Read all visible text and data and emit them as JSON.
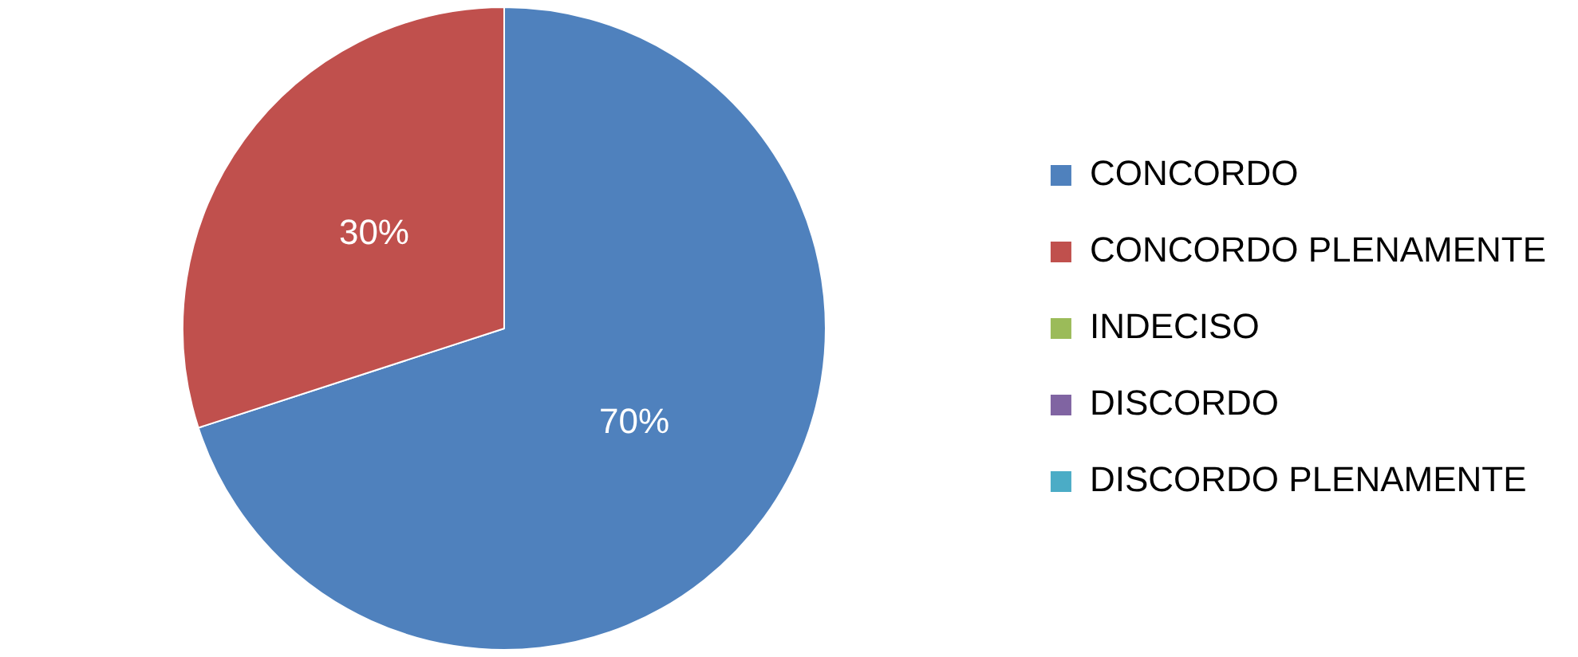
{
  "chart_data": {
    "type": "pie",
    "categories": [
      "CONCORDO",
      "CONCORDO PLENAMENTE",
      "INDECISO",
      "DISCORDO",
      "DISCORDO PLENAMENTE"
    ],
    "values": [
      70,
      30,
      0,
      0,
      0
    ],
    "colors": [
      "#4f81bd",
      "#c0504d",
      "#9bbb59",
      "#8064a2",
      "#4bacc6"
    ],
    "value_labels": [
      "70%",
      "30%",
      null,
      null,
      null
    ],
    "legend": "right"
  }
}
